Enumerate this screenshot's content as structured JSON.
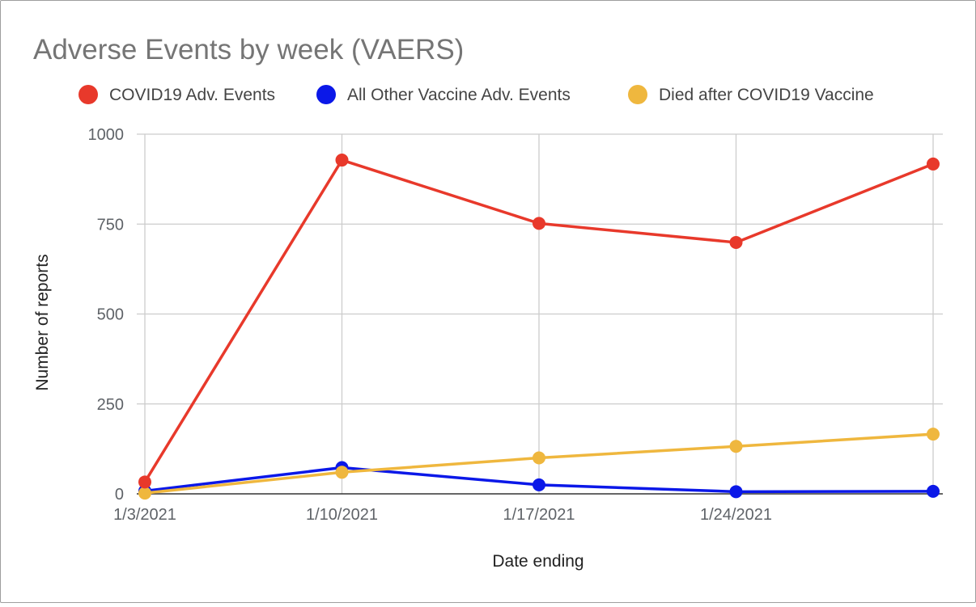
{
  "chart_data": {
    "type": "line",
    "title": "Adverse Events by week (VAERS)",
    "xlabel": "Date ending",
    "ylabel": "Number of reports",
    "x_ticks": [
      "1/3/2021",
      "1/10/2021",
      "1/17/2021",
      "1/24/2021"
    ],
    "x": [
      "2021-01-03",
      "2021-01-10",
      "2021-01-17",
      "2021-01-24",
      "2021-01-31"
    ],
    "ylim": [
      0,
      1000
    ],
    "yticks": [
      0,
      250,
      500,
      750,
      1000
    ],
    "grid": true,
    "legend_position": "top",
    "series": [
      {
        "name": "COVID19 Adv. Events",
        "color": "#e8392b",
        "values": [
          33,
          928,
          752,
          699,
          917
        ]
      },
      {
        "name": "All Other Vaccine Adv. Events",
        "color": "#0b18e8",
        "values": [
          8,
          73,
          25,
          6,
          7
        ]
      },
      {
        "name": "Died after COVID19 Vaccine",
        "color": "#efb73e",
        "values": [
          2,
          60,
          100,
          132,
          166
        ]
      }
    ]
  }
}
